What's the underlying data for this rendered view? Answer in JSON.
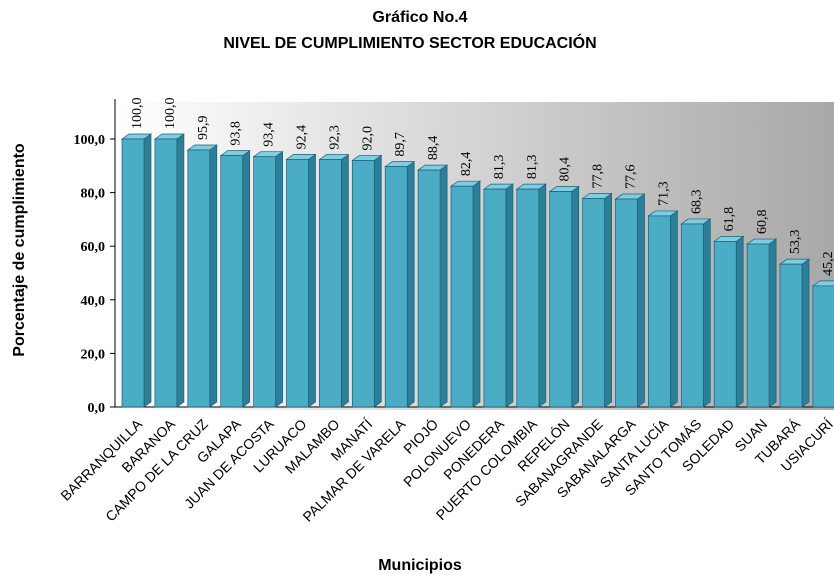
{
  "chart_data": {
    "type": "bar3d",
    "title": "Gráfico No.4",
    "subtitle": "NIVEL DE CUMPLIMIENTO SECTOR EDUCACIÓN",
    "ylabel": "Porcentaje de cumplimiento",
    "xlabel": "Municipios",
    "categories": [
      "BARRANQUILLA",
      "BARANOA",
      "CAMPO DE LA CRUZ",
      "GALAPA",
      "JUAN DE ACOSTA",
      "LURUACO",
      "MALAMBO",
      "MANATÍ",
      "PALMAR DE VARELA",
      "PIOJÓ",
      "POLONUEVO",
      "PONEDERA",
      "PUERTO COLOMBIA",
      "REPELÓN",
      "SABANAGRANDE",
      "SABANALARGA",
      "SANTA LUCÍA",
      "SANTO TOMÁS",
      "SOLEDAD",
      "SUAN",
      "TUBARÁ",
      "USIACURÍ"
    ],
    "values": [
      100.0,
      100.0,
      95.9,
      93.8,
      93.4,
      92.4,
      92.3,
      92.0,
      89.7,
      88.4,
      82.4,
      81.3,
      81.3,
      80.4,
      77.8,
      77.6,
      71.3,
      68.3,
      61.8,
      60.8,
      53.3,
      45.2
    ],
    "value_labels": [
      "100,0",
      "100,0",
      "95,9",
      "93,8",
      "93,4",
      "92,4",
      "92,3",
      "92,0",
      "89,7",
      "88,4",
      "82,4",
      "81,3",
      "81,3",
      "80,4",
      "77,8",
      "77,6",
      "71,3",
      "68,3",
      "61,8",
      "60,8",
      "53,3",
      "45,2"
    ],
    "color": "#4bacc6",
    "ylim": [
      0,
      100
    ],
    "yticks": [
      {
        "value": 0,
        "label": "0,0"
      },
      {
        "value": 20,
        "label": "20,0"
      },
      {
        "value": 40,
        "label": "40,0"
      },
      {
        "value": 60,
        "label": "60,0"
      },
      {
        "value": 80,
        "label": "80,0"
      },
      {
        "value": 100,
        "label": "100,0"
      }
    ],
    "grid": false
  }
}
